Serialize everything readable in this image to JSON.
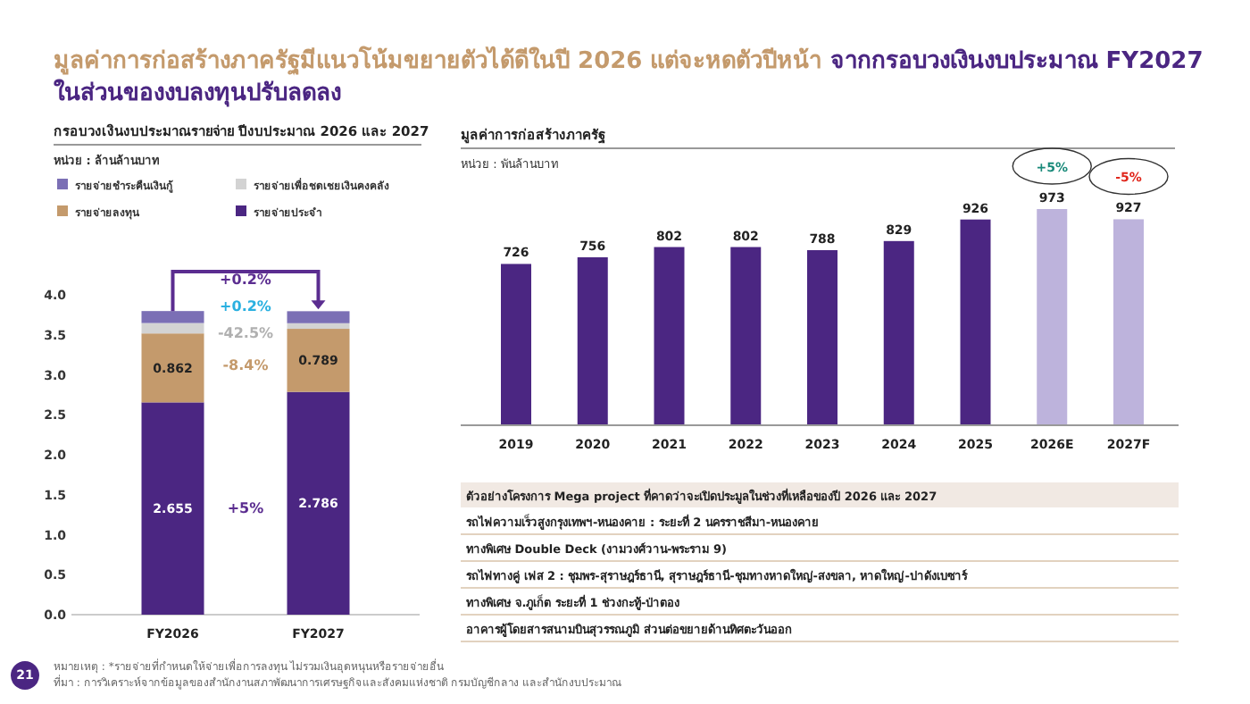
{
  "chart_data": [
    {
      "type": "other",
      "title": "มูลค่าการก่อสร้างภาครัฐมีแนวโน้มขยายตัวได้ดีในปี 2026 แต่จะหดตัวปีหน้า",
      "subtitle": "จากกรอบวงเงินงบประมาณ FY2027 ในส่วนของงบลงทุนปรับลดลง",
      "annotations": [
        "21",
        "หมายเหตุ : *รายจ่ายที่กำหนดให้จ่ายเพื่อการลงทุน ไม่รวมเงินอุดหนุนหรือรายจ่ายอื่น",
        "ที่มา : การวิเคราะห์จากข้อมูลของสำนักงานสภาพัฒนาการเศรษฐกิจและสังคมแห่งชาติ กรมบัญชีกลาง และสำนักงบประมาณ"
      ]
    },
    {
      "type": "bar",
      "stacked": true,
      "title": "กรอบวงเงินงบประมาณรายจ่าย ปีงบประมาณ 2026 และ 2027",
      "subtitle": "หน่วย : ล้านล้านบาท",
      "categories": [
        "FY2026",
        "FY2027"
      ],
      "series": [
        {
          "name": "รายจ่ายประจำ",
          "color": "#4b2682",
          "values": [
            2.655,
            2.786
          ],
          "value_labels": [
            "2.655",
            "2.786"
          ]
        },
        {
          "name": "รายจ่ายลงทุน",
          "color": "#c49a6c",
          "values": [
            0.862,
            0.789
          ],
          "value_labels": [
            "0.862",
            "0.789"
          ]
        },
        {
          "name": "รายจ่ายเพื่อชดเชยเงินคงคลัง",
          "color": "#d3d3d3",
          "values": [
            0.13,
            0.07
          ]
        },
        {
          "name": "รายจ่ายชำระคืนเงินกู้",
          "color": "#7b6fb5",
          "values": [
            0.15,
            0.15
          ]
        }
      ],
      "ylim": [
        0,
        4
      ],
      "yticks": [
        {
          "value": 0,
          "label": "0.0"
        },
        0.5,
        {
          "value": 1,
          "label": "1.0"
        },
        1.5,
        {
          "value": 2,
          "label": "2.0"
        },
        2.5,
        {
          "value": 3,
          "label": "3.0"
        },
        3.5,
        {
          "value": 4,
          "label": "4.0"
        }
      ],
      "grid": false,
      "legend": "top",
      "annotations": [
        "+0.2%",
        "+0.2%",
        "-42.5%",
        "-8.4%",
        "+5%"
      ]
    },
    {
      "type": "bar",
      "title": "มูลค่าการก่อสร้างภาครัฐ",
      "subtitle": "หน่วย : พันล้านบาท",
      "categories": [
        "2019",
        "2020",
        "2021",
        "2022",
        "2023",
        "2024",
        "2025",
        "2026E",
        "2027F"
      ],
      "values": [
        726,
        756,
        802,
        802,
        788,
        829,
        926,
        973,
        927
      ],
      "colors": [
        "#4b2682",
        "#4b2682",
        "#4b2682",
        "#4b2682",
        "#4b2682",
        "#4b2682",
        "#4b2682",
        "#bdb3dc",
        "#bdb3dc"
      ],
      "data_labels": true,
      "tick_labels": "x",
      "annotations": [
        {
          "text": "+5%",
          "x": "2026E",
          "y": 973
        },
        {
          "text": "-5%",
          "x": "2027F",
          "y": 927
        }
      ]
    },
    {
      "type": "other",
      "title": "ตัวอย่างโครงการ Mega project ที่คาดว่าจะเปิดประมูลในช่วงที่เหลือของปี 2026 และ 2027",
      "annotations": [
        "รถไฟความเร็วสูงกรุงเทพฯ-หนองคาย : ระยะที่ 2 นครราชสีมา-หนองคาย",
        "ทางพิเศษ Double Deck (งามวงศ์วาน-พระราม 9)",
        "รถไฟทางคู่ เฟส 2 : ชุมพร-สุราษฎร์ธานี, สุราษฎร์ธานี-ชุมทางหาดใหญ่-สงขลา, หาดใหญ่-ปาดังเบซาร์",
        "ทางพิเศษ จ.ภูเก็ต ระยะที่ 1 ช่วงกะทู้-ป่าตอง",
        "อาคารผู้โดยสารสนามบินสุวรรณภูมิ ส่วนต่อขยายด้านทิศตะวันออก"
      ]
    }
  ]
}
